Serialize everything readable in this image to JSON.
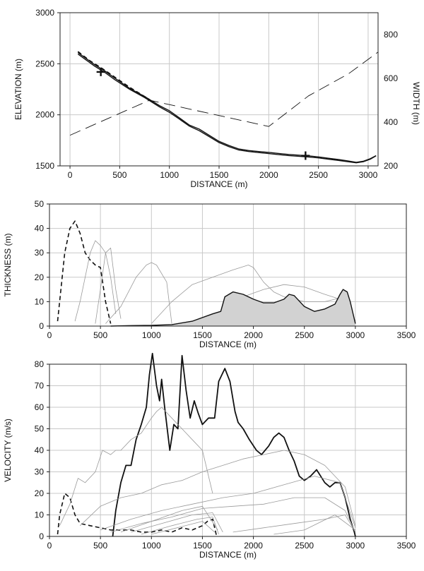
{
  "chart_data": [
    {
      "type": "line",
      "xlabel": "DISTANCE (m)",
      "ylabel": "ELEVATION (m)",
      "y2label": "WIDTH (m)",
      "xlim": [
        -100,
        3100
      ],
      "ylim": [
        1500,
        3000
      ],
      "y2lim": [
        200,
        900
      ],
      "xticks": [
        0,
        500,
        1000,
        1500,
        2000,
        2500,
        3000
      ],
      "yticks": [
        1500,
        2000,
        2500,
        3000
      ],
      "y2ticks": [
        200,
        400,
        600,
        800
      ],
      "grid": true,
      "series": [
        {
          "style": "solid",
          "axis": "y",
          "x": [
            80,
            150,
            250,
            350,
            450,
            600,
            750,
            900,
            1000,
            1100,
            1200,
            1300,
            1400,
            1500,
            1600,
            1700,
            1800,
            1900,
            2000,
            2100,
            2200,
            2300,
            2400,
            2500,
            2600,
            2700,
            2800,
            2880,
            2950,
            3020,
            3080
          ],
          "y": [
            2610,
            2560,
            2490,
            2430,
            2360,
            2260,
            2180,
            2090,
            2040,
            1970,
            1900,
            1860,
            1800,
            1740,
            1700,
            1665,
            1650,
            1640,
            1632,
            1622,
            1612,
            1605,
            1598,
            1588,
            1575,
            1562,
            1548,
            1535,
            1545,
            1570,
            1600
          ]
        },
        {
          "style": "solid",
          "axis": "y",
          "x": [
            80,
            150,
            250,
            350,
            450,
            600,
            750,
            900,
            1000,
            1100,
            1200,
            1300,
            1400,
            1500,
            1600,
            1700,
            1800,
            1900,
            2000,
            2100,
            2200,
            2300,
            2400,
            2500,
            2600,
            2700,
            2800,
            2880,
            2950,
            3020,
            3080
          ],
          "y": [
            2595,
            2545,
            2475,
            2415,
            2345,
            2250,
            2170,
            2078,
            2025,
            1958,
            1890,
            1845,
            1787,
            1728,
            1688,
            1655,
            1640,
            1630,
            1620,
            1610,
            1601,
            1594,
            1587,
            1578,
            1566,
            1553,
            1540,
            1530,
            1540,
            1565,
            1598
          ]
        },
        {
          "style": "dashed",
          "axis": "y",
          "x": [
            80,
            200,
            330,
            450,
            600,
            800
          ],
          "y": [
            2620,
            2530,
            2450,
            2370,
            2270,
            2150
          ]
        },
        {
          "style": "long-dash",
          "axis": "y2",
          "x": [
            0,
            400,
            800,
            1200,
            1600,
            2000,
            2400,
            2800,
            3100
          ],
          "y": [
            340,
            420,
            500,
            460,
            420,
            380,
            520,
            620,
            720
          ]
        }
      ],
      "markers": [
        {
          "symbol": "+",
          "x": 310,
          "y": 2420
        },
        {
          "symbol": "+",
          "x": 2370,
          "y": 1600
        }
      ]
    },
    {
      "type": "area",
      "xlabel": "DISTANCE (m)",
      "ylabel": "THICKNESS (m)",
      "xlim": [
        0,
        3500
      ],
      "ylim": [
        0,
        50
      ],
      "xticks": [
        0,
        500,
        1000,
        1500,
        2000,
        2500,
        3000,
        3500
      ],
      "yticks": [
        0,
        10,
        20,
        30,
        40,
        50
      ],
      "grid": true,
      "series": [
        {
          "style": "dashed",
          "color": "#111",
          "x": [
            80,
            100,
            150,
            200,
            250,
            300,
            350,
            400,
            450,
            500,
            550,
            600
          ],
          "y": [
            2,
            10,
            30,
            40,
            43,
            38,
            30,
            27,
            25,
            24,
            10,
            1
          ]
        },
        {
          "style": "thin",
          "color": "#9a9a9a",
          "x": [
            250,
            300,
            350,
            400,
            450,
            500,
            550,
            600,
            650
          ],
          "y": [
            2,
            10,
            20,
            30,
            35,
            33,
            30,
            20,
            5
          ]
        },
        {
          "style": "thin",
          "color": "#9a9a9a",
          "x": [
            450,
            500,
            550,
            600,
            650,
            700
          ],
          "y": [
            1,
            15,
            30,
            32,
            15,
            3
          ]
        },
        {
          "style": "thin",
          "color": "#9a9a9a",
          "x": [
            550,
            700,
            850,
            950,
            1000,
            1050,
            1150,
            1200
          ],
          "y": [
            1,
            8,
            20,
            25,
            26,
            25,
            18,
            1
          ]
        },
        {
          "style": "thin",
          "color": "#9a9a9a",
          "x": [
            1000,
            1200,
            1400,
            1600,
            1800,
            1950,
            2000,
            2100,
            2200,
            2300,
            2500,
            2700,
            2900,
            3000
          ],
          "y": [
            1,
            10,
            17,
            20,
            23,
            25,
            24,
            18,
            14,
            12,
            10,
            10,
            12,
            2
          ]
        },
        {
          "style": "thin",
          "color": "#9a9a9a",
          "x": [
            1700,
            1900,
            2100,
            2300,
            2500,
            2700,
            2850,
            3000
          ],
          "y": [
            2,
            12,
            15,
            17,
            16,
            13,
            11,
            2
          ]
        },
        {
          "style": "filled",
          "color": "#111",
          "fill": "#d2d2d2",
          "x": [
            600,
            800,
            1000,
            1200,
            1400,
            1600,
            1680,
            1720,
            1800,
            1900,
            2000,
            2100,
            2200,
            2300,
            2350,
            2400,
            2500,
            2600,
            2700,
            2800,
            2850,
            2880,
            2920,
            2950,
            3000
          ],
          "y": [
            0,
            0.2,
            0.3,
            0.6,
            2,
            5,
            6,
            12,
            14,
            13,
            11,
            9.5,
            9.5,
            11,
            13,
            12.5,
            8,
            6,
            7,
            9,
            13,
            15,
            14,
            10,
            1
          ]
        }
      ]
    },
    {
      "type": "line",
      "xlabel": "DISTANCE (m)",
      "ylabel": "VELOCITY (m/s)",
      "xlim": [
        0,
        3500
      ],
      "ylim": [
        0,
        80
      ],
      "xticks": [
        0,
        500,
        1000,
        1500,
        2000,
        2500,
        3000,
        3500
      ],
      "yticks": [
        0,
        10,
        20,
        30,
        40,
        50,
        60,
        70,
        80
      ],
      "grid": true,
      "series": [
        {
          "style": "dashed",
          "color": "#111",
          "x": [
            80,
            100,
            150,
            200,
            250,
            300,
            400,
            500,
            600,
            700,
            800,
            900,
            1000,
            1100,
            1200,
            1300,
            1400,
            1500,
            1550,
            1600,
            1640
          ],
          "y": [
            1,
            10,
            20,
            18,
            10,
            6,
            5,
            4,
            3,
            3,
            3,
            2,
            2,
            3,
            2,
            4,
            3,
            5,
            7,
            8,
            0
          ]
        },
        {
          "style": "solid-bold",
          "color": "#111",
          "x": [
            620,
            650,
            700,
            750,
            800,
            850,
            900,
            950,
            980,
            1010,
            1050,
            1080,
            1100,
            1130,
            1180,
            1220,
            1260,
            1300,
            1340,
            1380,
            1420,
            1460,
            1500,
            1560,
            1620,
            1660,
            1720,
            1770,
            1820,
            1850,
            1900,
            1960,
            2030,
            2080,
            2150,
            2200,
            2250,
            2300,
            2350,
            2400,
            2450,
            2500,
            2560,
            2620,
            2700,
            2750,
            2800,
            2850,
            2900,
            2950,
            2990,
            3000
          ],
          "y": [
            0,
            12,
            25,
            33,
            33,
            45,
            52,
            60,
            75,
            85,
            70,
            63,
            73,
            60,
            40,
            52,
            50,
            84,
            68,
            55,
            63,
            57,
            52,
            55,
            55,
            72,
            78,
            72,
            58,
            53,
            50,
            45,
            40,
            38,
            42,
            46,
            48,
            46,
            40,
            35,
            28,
            26,
            28,
            31,
            25,
            23,
            25,
            25,
            18,
            8,
            2,
            0
          ]
        },
        {
          "style": "thin",
          "color": "#9a9a9a",
          "x": [
            100,
            200,
            280,
            350,
            450,
            520,
            600,
            650,
            700,
            800,
            900,
            1000,
            1050,
            1100,
            1200,
            1300,
            1400,
            1500,
            1600
          ],
          "y": [
            5,
            15,
            27,
            25,
            30,
            40,
            38,
            40,
            40,
            45,
            48,
            55,
            58,
            60,
            55,
            50,
            45,
            40,
            20
          ]
        },
        {
          "style": "thin",
          "color": "#9a9a9a",
          "x": [
            300,
            500,
            700,
            900,
            1100,
            1300,
            1500,
            1700,
            1900,
            2100,
            2300,
            2500,
            2700,
            2900,
            3000
          ],
          "y": [
            5,
            14,
            18,
            20,
            24,
            26,
            30,
            33,
            36,
            38,
            40,
            38,
            33,
            23,
            5
          ]
        },
        {
          "style": "thin",
          "color": "#9a9a9a",
          "x": [
            500,
            800,
            1100,
            1400,
            1700,
            2000,
            2300,
            2600,
            2850,
            3000
          ],
          "y": [
            3,
            8,
            12,
            15,
            18,
            20,
            24,
            28,
            25,
            4
          ]
        },
        {
          "style": "thin",
          "color": "#9a9a9a",
          "x": [
            600,
            900,
            1200,
            1500,
            1800,
            2100,
            2400,
            2700,
            2900,
            3000
          ],
          "y": [
            2,
            6,
            9,
            13,
            14,
            15,
            18,
            18,
            12,
            2
          ]
        },
        {
          "style": "thin",
          "color": "#9a9a9a",
          "x": [
            700,
            1000,
            1300,
            1500,
            1650
          ],
          "y": [
            2,
            7,
            12,
            14,
            3
          ]
        },
        {
          "style": "thin",
          "color": "#9a9a9a",
          "x": [
            800,
            1100,
            1400,
            1600,
            1700
          ],
          "y": [
            2,
            6,
            10,
            11,
            2
          ]
        },
        {
          "style": "thin",
          "color": "#9a9a9a",
          "x": [
            900,
            1200,
            1450,
            1600,
            1660
          ],
          "y": [
            1,
            5,
            8,
            9,
            1
          ]
        },
        {
          "style": "thin",
          "color": "#9a9a9a",
          "x": [
            1000,
            1250,
            1500,
            1620
          ],
          "y": [
            1,
            4,
            7,
            2
          ]
        },
        {
          "style": "thin",
          "color": "#9a9a9a",
          "x": [
            1800,
            2100,
            2400,
            2700,
            2900,
            3000
          ],
          "y": [
            2,
            4,
            6,
            8,
            10,
            2
          ]
        },
        {
          "style": "thin",
          "color": "#9a9a9a",
          "x": [
            2200,
            2500,
            2800,
            3000
          ],
          "y": [
            1,
            3,
            10,
            3
          ]
        }
      ]
    }
  ]
}
